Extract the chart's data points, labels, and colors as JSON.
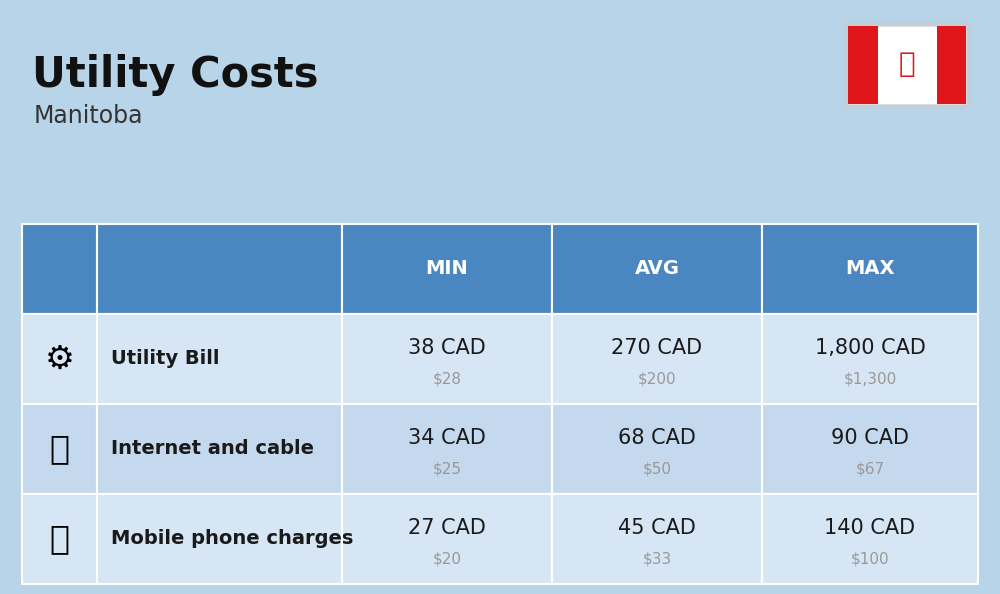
{
  "title": "Utility Costs",
  "subtitle": "Manitoba",
  "background_color": "#b8d4e8",
  "header_bg_color": "#4a86c0",
  "header_text_color": "#ffffff",
  "row_bg_color_0": "#d6e6f4",
  "row_bg_color_1": "#c5d9ee",
  "row_bg_color_2": "#d6e6f4",
  "table_border_color": "#ffffff",
  "rows": [
    {
      "icon_label": "utility",
      "name": "Utility Bill",
      "min_cad": "38 CAD",
      "min_usd": "$28",
      "avg_cad": "270 CAD",
      "avg_usd": "$200",
      "max_cad": "1,800 CAD",
      "max_usd": "$1,300"
    },
    {
      "icon_label": "internet",
      "name": "Internet and cable",
      "min_cad": "34 CAD",
      "min_usd": "$25",
      "avg_cad": "68 CAD",
      "avg_usd": "$50",
      "max_cad": "90 CAD",
      "max_usd": "$67"
    },
    {
      "icon_label": "mobile",
      "name": "Mobile phone charges",
      "min_cad": "27 CAD",
      "min_usd": "$20",
      "avg_cad": "45 CAD",
      "avg_usd": "$33",
      "max_cad": "140 CAD",
      "max_usd": "$100"
    }
  ],
  "cad_fontsize": 15,
  "usd_fontsize": 11,
  "name_fontsize": 14,
  "header_fontsize": 14,
  "title_fontsize": 30,
  "subtitle_fontsize": 17,
  "usd_color": "#999999",
  "cell_text_color": "#1a1a1a",
  "title_color": "#111111",
  "subtitle_color": "#333333",
  "flag_red": "#e0161a",
  "flag_white": "#ffffff"
}
